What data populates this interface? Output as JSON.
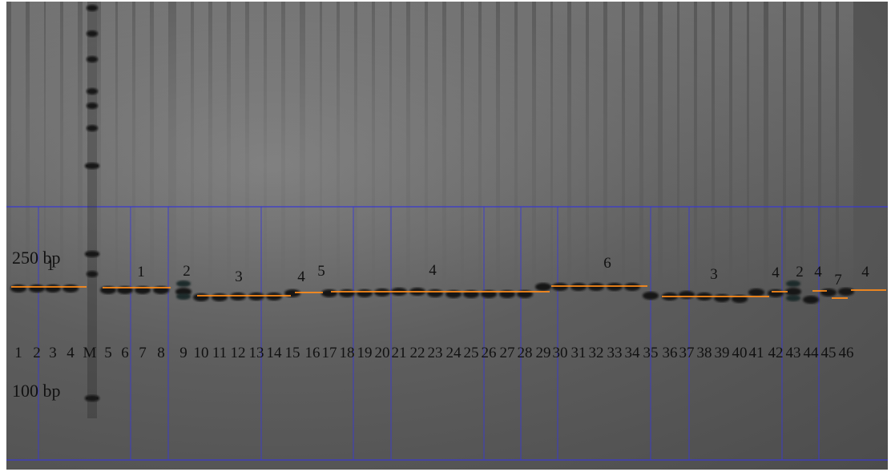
{
  "markers": [
    {
      "label": "250 bp"
    },
    {
      "label": "100 bp"
    }
  ],
  "lane_labels": [
    "1",
    "2",
    "3",
    "4",
    "M",
    "5",
    "6",
    "7",
    "8",
    "9",
    "10",
    "11",
    "12",
    "13",
    "14",
    "15",
    "16",
    "17",
    "18",
    "19",
    "20",
    "21",
    "22",
    "23",
    "24",
    "25",
    "26",
    "27",
    "28",
    "29",
    "30",
    "31",
    "32",
    "33",
    "34",
    "35",
    "36",
    "37",
    "38",
    "39",
    "40",
    "41",
    "42",
    "43",
    "44",
    "45",
    "46"
  ],
  "group_labels": [
    "1",
    "1",
    "2",
    "3",
    "4",
    "5",
    "4",
    "6",
    "3",
    "4",
    "2",
    "4",
    "7",
    "4"
  ],
  "colors": {
    "band_line": "#ff8c1a",
    "grid_line": "#3a3ad0",
    "band": "#141414"
  }
}
